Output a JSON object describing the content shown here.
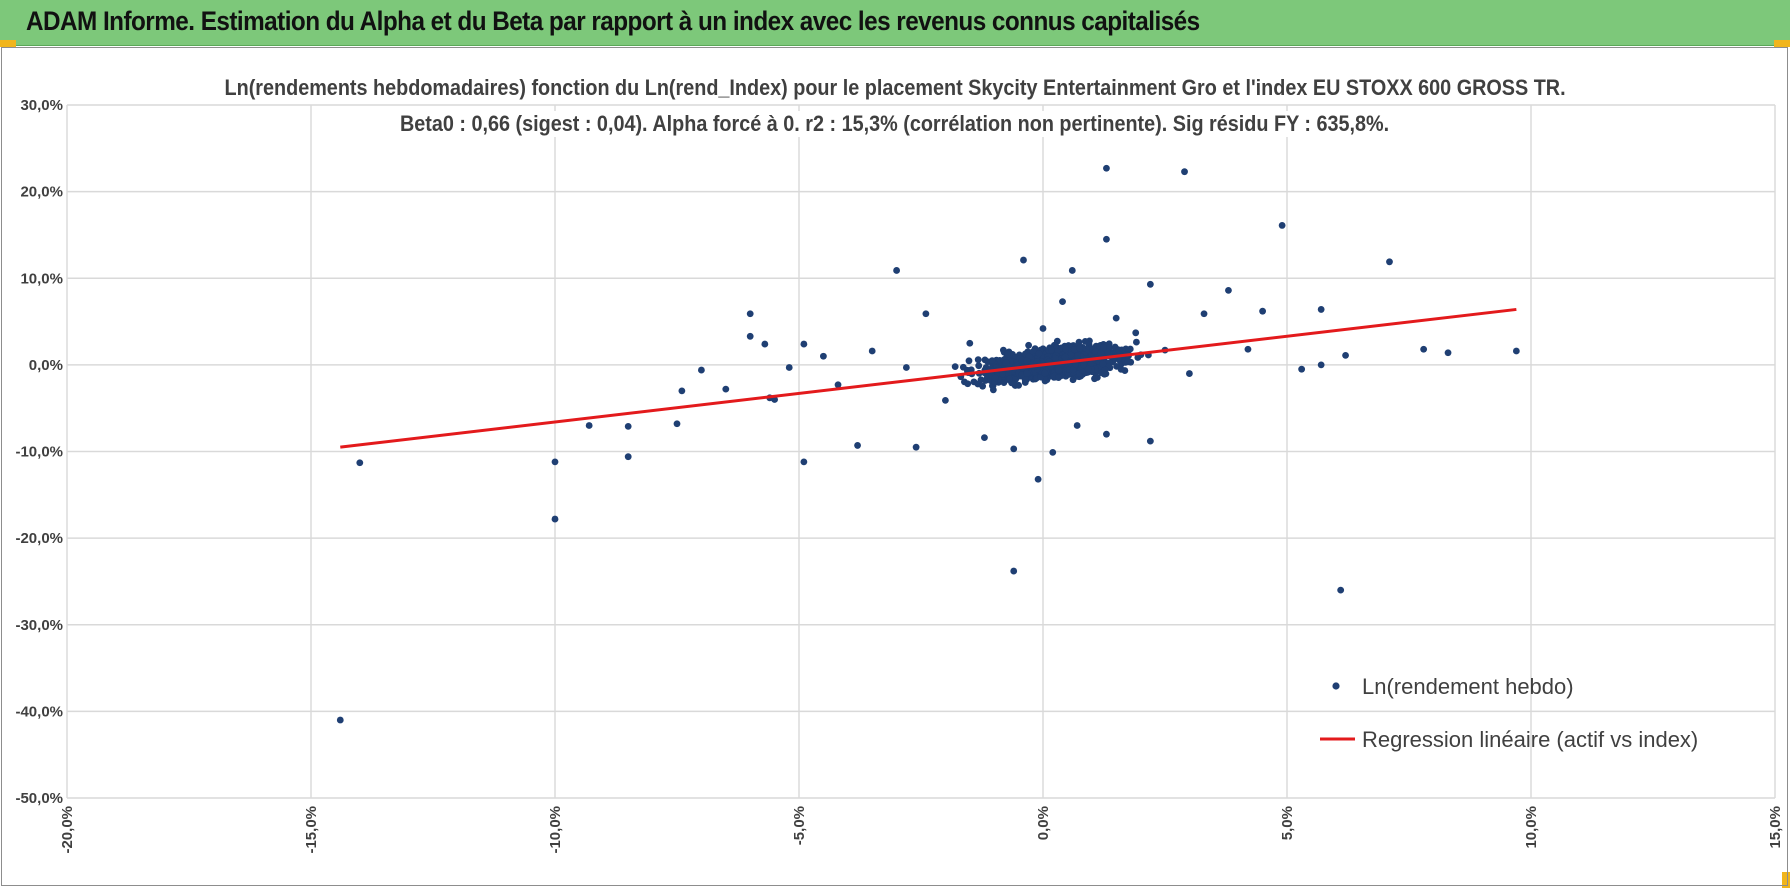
{
  "header": {
    "title": "ADAM Informe. Estimation du Alpha et du Beta par rapport à un index avec les revenus connus capitalisés"
  },
  "colors": {
    "header_bg": "#7dc87a",
    "points": "#1f3f73",
    "regression": "#e31a1c",
    "corner_accent": "#f1b51c",
    "grid": "#d9d9d9"
  },
  "chart_data": {
    "type": "scatter",
    "title": "Ln(rendements hebdomadaires) fonction du Ln(rend_Index) pour le placement Skycity Entertainment Gro et l'index EU STOXX 600 GROSS TR.",
    "subtitle": "Beta0 : 0,66 (sigest : 0,04).  Alpha forcé à 0. r2 : 15,3% (corrélation non pertinente). Sig résidu FY : 635,8%.",
    "xlim": [
      -20,
      15
    ],
    "ylim": [
      -50,
      30
    ],
    "grid": true,
    "legend_position": "bottom-right",
    "x_ticks": [
      "-20,0%",
      "-15,0%",
      "-10,0%",
      "-5,0%",
      "0,0%",
      "5,0%",
      "10,0%",
      "15,0%"
    ],
    "y_ticks": [
      "30,0%",
      "20,0%",
      "10,0%",
      "0,0%",
      "-10,0%",
      "-20,0%",
      "-30,0%",
      "-40,0%",
      "-50,0%"
    ],
    "series": [
      {
        "name": "Ln(rendement hebdo)",
        "kind": "scatter",
        "points": [
          [
            -14.4,
            -41.0
          ],
          [
            -14.0,
            -11.3
          ],
          [
            -10.0,
            -17.8
          ],
          [
            -10.0,
            -11.2
          ],
          [
            -9.3,
            -7.0
          ],
          [
            -8.5,
            -10.6
          ],
          [
            -8.5,
            -7.1
          ],
          [
            -7.5,
            -6.8
          ],
          [
            -7.4,
            -3.0
          ],
          [
            -7.0,
            -0.6
          ],
          [
            -6.5,
            -2.8
          ],
          [
            -6.0,
            5.9
          ],
          [
            -6.0,
            3.3
          ],
          [
            -5.7,
            2.4
          ],
          [
            -5.6,
            -3.8
          ],
          [
            -5.5,
            -4.0
          ],
          [
            -5.2,
            -0.3
          ],
          [
            -4.9,
            -11.2
          ],
          [
            -4.9,
            2.4
          ],
          [
            -4.5,
            1.0
          ],
          [
            -4.2,
            -2.3
          ],
          [
            -3.8,
            -9.3
          ],
          [
            -3.5,
            1.6
          ],
          [
            -3.0,
            10.9
          ],
          [
            -2.8,
            -0.3
          ],
          [
            -2.6,
            -9.5
          ],
          [
            -2.4,
            5.9
          ],
          [
            -2.0,
            -4.1
          ],
          [
            -1.8,
            -0.2
          ],
          [
            -1.5,
            2.5
          ],
          [
            -1.2,
            -8.4
          ],
          [
            -1.0,
            0.3
          ],
          [
            -0.6,
            -23.8
          ],
          [
            -0.6,
            -9.7
          ],
          [
            -0.4,
            12.1
          ],
          [
            0.0,
            4.2
          ],
          [
            -0.1,
            -13.2
          ],
          [
            0.2,
            -10.1
          ],
          [
            0.4,
            7.3
          ],
          [
            0.6,
            10.9
          ],
          [
            0.7,
            -7.0
          ],
          [
            1.0,
            1.1
          ],
          [
            1.3,
            22.7
          ],
          [
            1.3,
            14.5
          ],
          [
            1.3,
            -8.0
          ],
          [
            1.5,
            5.4
          ],
          [
            1.9,
            3.7
          ],
          [
            2.2,
            9.3
          ],
          [
            2.2,
            -8.8
          ],
          [
            2.5,
            1.7
          ],
          [
            2.9,
            22.3
          ],
          [
            3.0,
            -1.0
          ],
          [
            3.3,
            5.9
          ],
          [
            3.8,
            8.6
          ],
          [
            4.2,
            1.8
          ],
          [
            4.5,
            6.2
          ],
          [
            4.9,
            16.1
          ],
          [
            5.3,
            -0.5
          ],
          [
            5.7,
            6.4
          ],
          [
            5.7,
            0.0
          ],
          [
            6.1,
            -26.0
          ],
          [
            6.2,
            1.1
          ],
          [
            7.1,
            11.9
          ],
          [
            7.8,
            1.8
          ],
          [
            8.3,
            1.4
          ],
          [
            9.7,
            1.6
          ]
        ]
      },
      {
        "name": "Regression linéaire (actif vs index)",
        "kind": "line",
        "points": [
          [
            -14.4,
            -9.5
          ],
          [
            9.7,
            6.4
          ]
        ]
      }
    ]
  }
}
